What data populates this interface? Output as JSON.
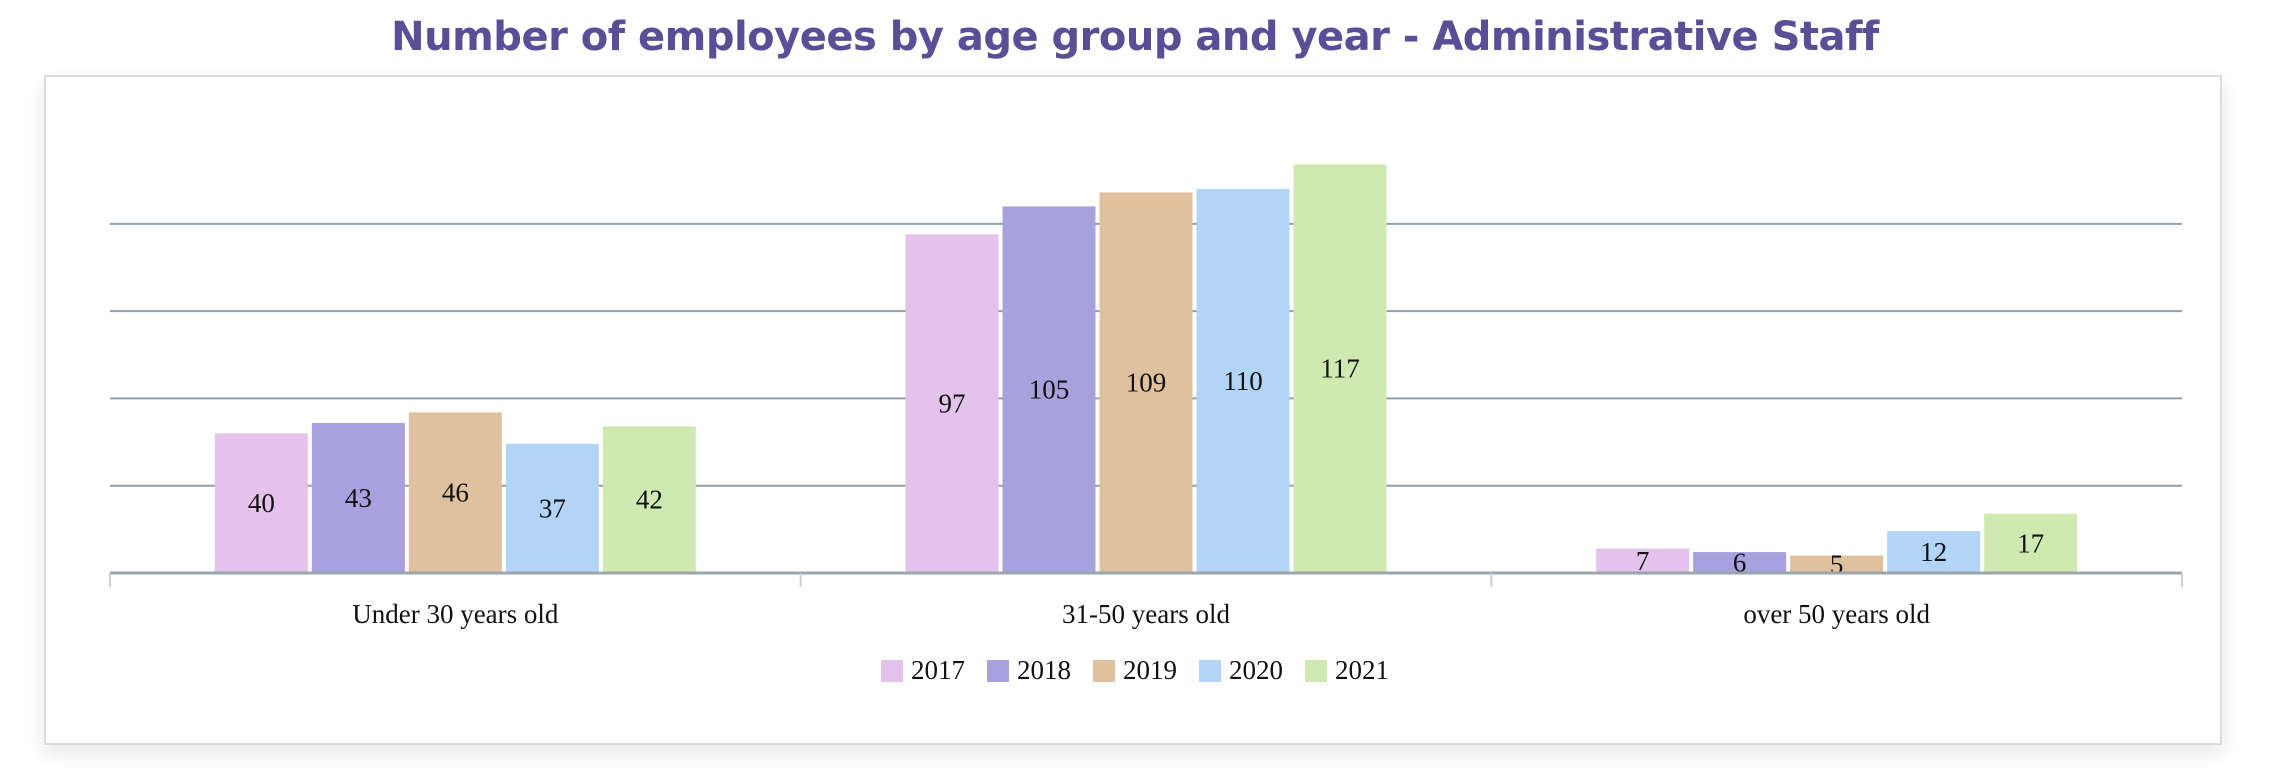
{
  "chart_data": {
    "type": "bar",
    "title": "Number of employees by age group and year - Administrative Staff",
    "categories": [
      "Under 30 years old",
      "31-50 years old",
      "over 50 years old"
    ],
    "series": [
      {
        "name": "2017",
        "color": "#e4c2ec",
        "values": [
          40,
          97,
          7
        ]
      },
      {
        "name": "2018",
        "color": "#a8a1dd",
        "values": [
          43,
          105,
          6
        ]
      },
      {
        "name": "2019",
        "color": "#dfc19f",
        "values": [
          46,
          109,
          5
        ]
      },
      {
        "name": "2020",
        "color": "#b2d4f6",
        "values": [
          37,
          110,
          12
        ]
      },
      {
        "name": "2021",
        "color": "#d0e9b0",
        "values": [
          42,
          117,
          17
        ]
      }
    ],
    "ylim": [
      0,
      120
    ],
    "grid": true,
    "legend_position": "bottom"
  }
}
